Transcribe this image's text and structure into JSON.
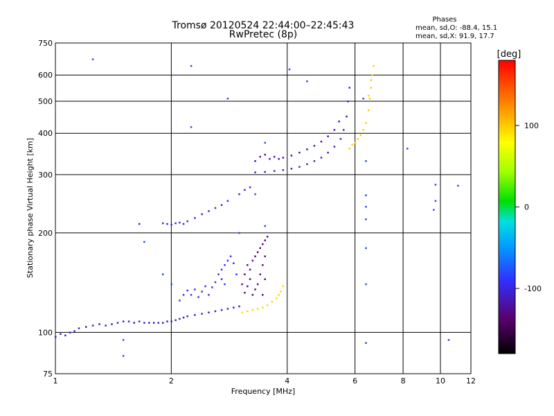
{
  "chart_data": {
    "type": "scatter",
    "title": "Tromsø 20120524 22:44:00–22:45:43",
    "subtitle": "RwPretec (8p)",
    "phases": {
      "header": "Phases",
      "line1": "mean, sd,O: -88.4, 15.1",
      "line2": "mean, sd,X: 91.9, 17.7"
    },
    "xlabel": "Frequency [MHz]",
    "ylabel": "Stationary phase Virtual Height [km]",
    "x_scale": "log",
    "y_scale": "log",
    "xlim": [
      1,
      12
    ],
    "ylim": [
      75,
      750
    ],
    "x_ticks": [
      1,
      2,
      4,
      6,
      8,
      10,
      12
    ],
    "y_ticks": [
      75,
      100,
      200,
      300,
      400,
      500,
      600,
      750
    ],
    "grid": true,
    "colorbar": {
      "label": "[deg]",
      "min": -180,
      "max": 180,
      "ticks": [
        100,
        0,
        -100
      ]
    },
    "series": [
      {
        "points": [
          [
            1.0,
            97
          ],
          [
            1.03,
            99
          ],
          [
            1.06,
            98
          ],
          [
            1.09,
            100
          ],
          [
            1.12,
            101
          ],
          [
            1.15,
            103
          ],
          [
            1.2,
            104
          ],
          [
            1.25,
            105
          ],
          [
            1.3,
            106
          ],
          [
            1.35,
            105
          ],
          [
            1.4,
            106
          ],
          [
            1.45,
            107
          ],
          [
            1.5,
            108
          ],
          [
            1.55,
            108
          ],
          [
            1.6,
            107
          ],
          [
            1.65,
            108
          ],
          [
            1.7,
            107
          ],
          [
            1.75,
            107
          ],
          [
            1.8,
            107
          ],
          [
            1.85,
            107
          ],
          [
            1.9,
            107
          ],
          [
            1.95,
            108
          ],
          [
            2.0,
            108
          ],
          [
            2.05,
            109
          ],
          [
            2.1,
            110
          ],
          [
            2.15,
            111
          ],
          [
            2.2,
            112
          ],
          [
            2.3,
            113
          ],
          [
            2.4,
            114
          ],
          [
            2.5,
            115
          ],
          [
            2.6,
            116
          ],
          [
            2.7,
            117
          ],
          [
            2.8,
            118
          ],
          [
            2.9,
            119
          ],
          [
            3.0,
            120
          ]
        ],
        "phase": -110
      },
      {
        "points": [
          [
            2.1,
            125
          ],
          [
            2.15,
            130
          ],
          [
            2.2,
            134
          ],
          [
            2.25,
            130
          ],
          [
            2.3,
            135
          ],
          [
            2.35,
            128
          ],
          [
            2.4,
            133
          ],
          [
            2.45,
            138
          ],
          [
            2.5,
            130
          ],
          [
            2.55,
            137
          ],
          [
            2.6,
            142
          ],
          [
            2.65,
            150
          ],
          [
            2.7,
            155
          ],
          [
            2.75,
            160
          ],
          [
            2.8,
            165
          ],
          [
            2.85,
            170
          ],
          [
            2.9,
            162
          ],
          [
            2.95,
            150
          ],
          [
            2.7,
            145
          ],
          [
            2.75,
            140
          ]
        ],
        "phase": -90
      },
      {
        "points": [
          [
            3.05,
            140
          ],
          [
            3.1,
            150
          ],
          [
            3.15,
            160
          ],
          [
            3.2,
            155
          ],
          [
            3.25,
            165
          ],
          [
            3.3,
            170
          ],
          [
            3.35,
            175
          ],
          [
            3.4,
            180
          ],
          [
            3.45,
            185
          ],
          [
            3.5,
            190
          ],
          [
            3.5,
            170
          ],
          [
            3.45,
            160
          ],
          [
            3.4,
            150
          ],
          [
            3.35,
            140
          ],
          [
            3.3,
            135
          ],
          [
            3.25,
            130
          ],
          [
            3.2,
            145
          ],
          [
            3.15,
            138
          ],
          [
            3.1,
            132
          ],
          [
            3.45,
            130
          ],
          [
            3.5,
            145
          ],
          [
            3.55,
            195
          ]
        ],
        "phase": -130
      },
      {
        "points": [
          [
            3.05,
            115
          ],
          [
            3.15,
            116
          ],
          [
            3.25,
            117
          ],
          [
            3.35,
            118
          ],
          [
            3.45,
            119
          ],
          [
            3.55,
            121
          ],
          [
            3.65,
            124
          ],
          [
            3.75,
            127
          ],
          [
            3.8,
            130
          ],
          [
            3.85,
            133
          ],
          [
            3.9,
            138
          ]
        ],
        "phase": 95
      },
      {
        "points": [
          [
            1.65,
            213
          ],
          [
            1.9,
            214
          ],
          [
            1.95,
            213
          ],
          [
            2.0,
            212
          ],
          [
            2.05,
            214
          ],
          [
            2.1,
            215
          ],
          [
            2.15,
            213
          ],
          [
            2.2,
            217
          ],
          [
            2.3,
            222
          ],
          [
            2.4,
            228
          ],
          [
            2.5,
            233
          ],
          [
            2.6,
            238
          ],
          [
            2.7,
            243
          ],
          [
            2.8,
            250
          ],
          [
            3.0,
            262
          ],
          [
            3.1,
            270
          ],
          [
            3.2,
            275
          ]
        ],
        "phase": -100
      },
      {
        "points": [
          [
            3.3,
            305
          ],
          [
            3.5,
            306
          ],
          [
            3.7,
            308
          ],
          [
            3.9,
            310
          ],
          [
            4.1,
            313
          ],
          [
            4.3,
            317
          ],
          [
            4.5,
            323
          ],
          [
            4.7,
            330
          ],
          [
            4.9,
            338
          ],
          [
            5.1,
            350
          ],
          [
            5.3,
            365
          ],
          [
            5.5,
            385
          ],
          [
            5.6,
            410
          ],
          [
            5.7,
            450
          ],
          [
            5.75,
            500
          ],
          [
            5.8,
            550
          ]
        ],
        "phase": -105
      },
      {
        "points": [
          [
            3.3,
            330
          ],
          [
            3.4,
            340
          ],
          [
            3.5,
            345
          ],
          [
            3.6,
            335
          ],
          [
            3.7,
            340
          ],
          [
            3.8,
            335
          ],
          [
            3.9,
            338
          ],
          [
            4.1,
            343
          ],
          [
            4.3,
            350
          ],
          [
            4.5,
            358
          ],
          [
            4.7,
            367
          ],
          [
            4.9,
            378
          ],
          [
            5.1,
            392
          ],
          [
            5.3,
            410
          ],
          [
            5.45,
            435
          ]
        ],
        "phase": -120
      },
      {
        "points": [
          [
            5.8,
            360
          ],
          [
            6.0,
            375
          ],
          [
            6.2,
            395
          ],
          [
            6.4,
            430
          ],
          [
            6.5,
            470
          ],
          [
            6.55,
            510
          ],
          [
            6.6,
            550
          ],
          [
            6.65,
            600
          ],
          [
            6.7,
            640
          ],
          [
            6.6,
            580
          ],
          [
            6.5,
            520
          ],
          [
            6.3,
            410
          ],
          [
            6.1,
            385
          ],
          [
            5.9,
            370
          ]
        ],
        "phase": 100
      },
      {
        "points": [
          [
            1.25,
            670
          ],
          [
            2.25,
            640
          ],
          [
            2.25,
            418
          ],
          [
            2.8,
            510
          ],
          [
            4.05,
            625
          ],
          [
            4.5,
            575
          ],
          [
            6.3,
            510
          ],
          [
            6.4,
            330
          ],
          [
            6.4,
            260
          ],
          [
            6.4,
            240
          ],
          [
            6.4,
            220
          ],
          [
            6.4,
            180
          ],
          [
            6.4,
            140
          ],
          [
            6.4,
            93
          ],
          [
            8.2,
            360
          ],
          [
            9.7,
            280
          ],
          [
            9.7,
            250
          ],
          [
            9.6,
            235
          ],
          [
            10.5,
            95
          ],
          [
            11.1,
            278
          ],
          [
            1.7,
            188
          ],
          [
            1.9,
            150
          ],
          [
            2.0,
            140
          ],
          [
            1.5,
            95
          ],
          [
            1.5,
            85
          ],
          [
            3.0,
            200
          ],
          [
            3.5,
            210
          ],
          [
            3.3,
            262
          ],
          [
            3.5,
            375
          ]
        ],
        "phase": -80
      }
    ]
  }
}
